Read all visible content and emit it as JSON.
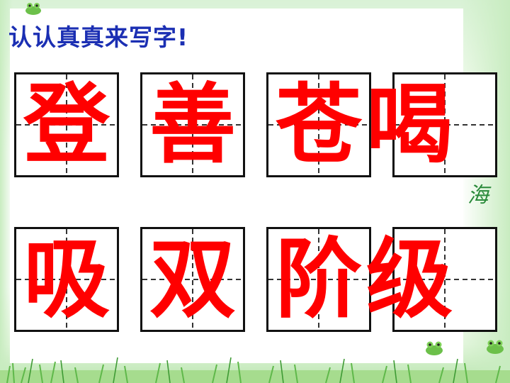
{
  "slide": {
    "title": "认认真真来写字!",
    "colors": {
      "title": "#1b2fb3",
      "characters": "#ff0000",
      "grid_border": "#111111",
      "grid_guides": "#333333",
      "background_accent": "#c8ecc0"
    },
    "rows": [
      {
        "characters": [
          "登",
          "善",
          "苍",
          "喝"
        ]
      },
      {
        "characters": [
          "吸",
          "双",
          "阶",
          "级"
        ]
      }
    ],
    "side_mark": "海",
    "decorations": [
      "frog-icon",
      "grass-border"
    ]
  }
}
